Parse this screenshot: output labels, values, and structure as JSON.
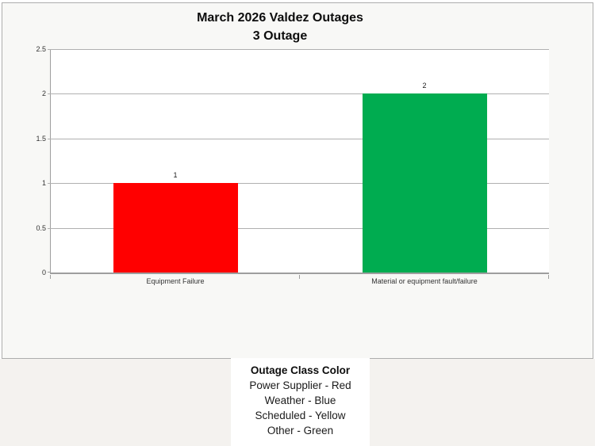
{
  "chart_data": {
    "type": "bar",
    "title": "March 2026 Valdez Outages",
    "subtitle": "3 Outage",
    "categories": [
      "Equipment Failure",
      "Material or equipment fault/failure"
    ],
    "values": [
      1,
      2
    ],
    "value_labels": [
      "1",
      "2"
    ],
    "bar_colors": [
      "#ff0000",
      "#00ac50"
    ],
    "xlabel": "",
    "ylabel": "",
    "ylim": [
      0,
      2.5
    ],
    "yticks": [
      0,
      0.5,
      1,
      1.5,
      2,
      2.5
    ],
    "ytick_labels": [
      "0",
      "0.5",
      "1",
      "1.5",
      "2",
      "2.5"
    ],
    "grid": true,
    "legend_position": "text-panel-below-chart"
  },
  "legend_panel": {
    "title": "Outage Class Color",
    "entries": [
      "Power Supplier - Red",
      "Weather - Blue",
      "Scheduled - Yellow",
      "Other - Green"
    ]
  },
  "colors": {
    "bar_red": "#ff0000",
    "bar_green": "#00ac50",
    "chart_background": "#f8f8f6",
    "plot_background": "#ffffff",
    "page_lower_background": "#f4f2ef",
    "gridline": "#b0b0b0",
    "axis": "#9e9e9e"
  }
}
